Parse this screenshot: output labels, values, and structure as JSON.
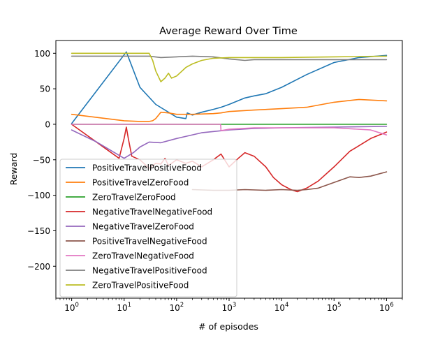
{
  "figure": {
    "title": "Average Reward Over Time",
    "xlabel": "# of episodes",
    "ylabel": "Reward"
  },
  "chart_data": {
    "type": "line",
    "title": "Average Reward Over Time",
    "xlabel": "# of episodes",
    "ylabel": "Reward",
    "xscale": "log",
    "xlim": [
      0.5,
      2000000
    ],
    "ylim": [
      -245,
      118
    ],
    "xticks": [
      {
        "value": 1,
        "base": "10",
        "exp": "0"
      },
      {
        "value": 10,
        "base": "10",
        "exp": "1"
      },
      {
        "value": 100,
        "base": "10",
        "exp": "2"
      },
      {
        "value": 1000,
        "base": "10",
        "exp": "3"
      },
      {
        "value": 10000,
        "base": "10",
        "exp": "4"
      },
      {
        "value": 100000,
        "base": "10",
        "exp": "5"
      },
      {
        "value": 1000000,
        "base": "10",
        "exp": "6"
      }
    ],
    "yticks": [
      {
        "value": 100,
        "label": "100"
      },
      {
        "value": 50,
        "label": "50"
      },
      {
        "value": 0,
        "label": "0"
      },
      {
        "value": -50,
        "label": "−50"
      },
      {
        "value": -100,
        "label": "−100"
      },
      {
        "value": -150,
        "label": "−150"
      },
      {
        "value": -200,
        "label": "−200"
      }
    ],
    "grid": false,
    "legend_position": "lower-left",
    "series": [
      {
        "name": "PositiveTravelPositiveFood",
        "color": "#1f77b4",
        "x": [
          1,
          11,
          20,
          40,
          100,
          150,
          160,
          200,
          300,
          500,
          700,
          1000,
          2000,
          3000,
          5000,
          10000,
          30000,
          100000,
          300000,
          1000000
        ],
        "y": [
          1,
          102,
          52,
          28,
          10,
          8,
          16,
          13,
          17,
          21,
          24,
          28,
          37,
          40,
          43,
          52,
          70,
          87,
          94,
          97
        ]
      },
      {
        "name": "PositiveTravelZeroFood",
        "color": "#ff7f0e",
        "x": [
          1,
          10,
          20,
          30,
          35,
          40,
          50,
          70,
          100,
          200,
          500,
          700,
          1000,
          3000,
          10000,
          30000,
          100000,
          300000,
          1000000
        ],
        "y": [
          14,
          5,
          4,
          4,
          5,
          8,
          17,
          16,
          14,
          14,
          15,
          16,
          18,
          20,
          22,
          24,
          31,
          35,
          33
        ]
      },
      {
        "name": "ZeroTravelZeroFood",
        "color": "#2ca02c",
        "x": [
          1,
          1000000
        ],
        "y": [
          0,
          0
        ]
      },
      {
        "name": "NegativeTravelNegativeFood",
        "color": "#d62728",
        "x": [
          1,
          8,
          10,
          11,
          12,
          14,
          20,
          30,
          40,
          50,
          60,
          70,
          100,
          150,
          200,
          300,
          500,
          700,
          1000,
          1500,
          2000,
          3000,
          5000,
          7000,
          10000,
          15000,
          20000,
          30000,
          50000,
          100000,
          200000,
          500000,
          1000000
        ],
        "y": [
          0,
          -48,
          -20,
          -4,
          -20,
          -45,
          -50,
          -62,
          -55,
          -56,
          -48,
          -58,
          -50,
          -55,
          -52,
          -60,
          -50,
          -42,
          -60,
          -48,
          -40,
          -45,
          -60,
          -75,
          -85,
          -92,
          -95,
          -90,
          -80,
          -60,
          -38,
          -20,
          -11
        ]
      },
      {
        "name": "NegativeTravelZeroFood",
        "color": "#9467bd",
        "x": [
          1,
          3,
          10,
          15,
          20,
          30,
          50,
          100,
          300,
          1000,
          3000,
          10000,
          100000,
          1000000
        ],
        "y": [
          -8,
          -25,
          -48,
          -40,
          -32,
          -25,
          -26,
          -20,
          -12,
          -8,
          -6,
          -5,
          -4,
          -3
        ]
      },
      {
        "name": "PositiveTravelNegativeFood",
        "color": "#8c564b",
        "x": [
          200,
          500,
          1000,
          2000,
          5000,
          10000,
          20000,
          30000,
          50000,
          100000,
          200000,
          300000,
          500000,
          1000000
        ],
        "y": [
          -92,
          -93,
          -93,
          -92,
          -93,
          -92,
          -93,
          -92,
          -90,
          -82,
          -74,
          -75,
          -73,
          -67
        ]
      },
      {
        "name": "ZeroTravelNegativeFood",
        "color": "#e377c2",
        "x": [
          1,
          690,
          700,
          1000,
          3000,
          10000,
          100000,
          500000,
          1000000
        ],
        "y": [
          0,
          0,
          -9,
          -7,
          -5,
          -5,
          -5,
          -8,
          -15
        ]
      },
      {
        "name": "NegativeTravelPositiveFood",
        "color": "#7f7f7f",
        "x": [
          1,
          30,
          50,
          100,
          200,
          500,
          1000,
          2000,
          3000,
          10000,
          100000,
          1000000
        ],
        "y": [
          96,
          96,
          94,
          95,
          96,
          95,
          92,
          90,
          91,
          91,
          91,
          91
        ]
      },
      {
        "name": "ZeroTravelPositiveFood",
        "color": "#bcbd22",
        "x": [
          1,
          30,
          35,
          40,
          50,
          60,
          70,
          80,
          100,
          150,
          200,
          300,
          500,
          1000,
          10000,
          100000,
          1000000
        ],
        "y": [
          100,
          100,
          90,
          75,
          60,
          65,
          72,
          65,
          68,
          80,
          85,
          90,
          93,
          94,
          94,
          95,
          96
        ]
      }
    ]
  }
}
